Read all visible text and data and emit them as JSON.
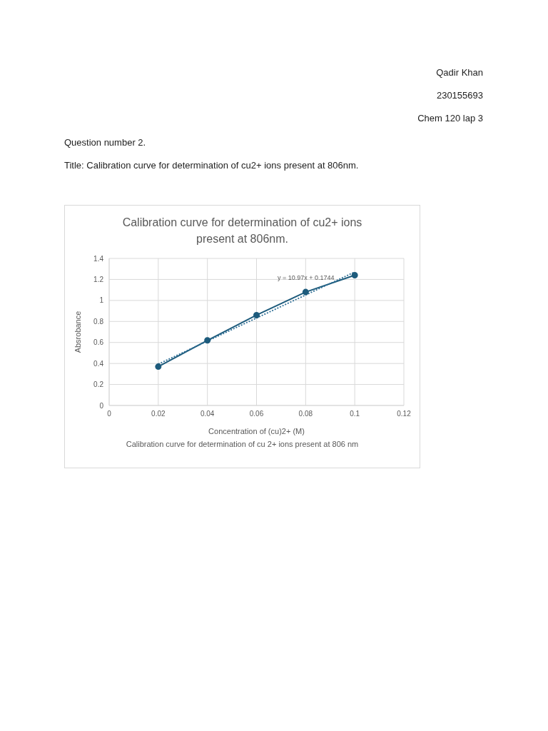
{
  "chart_data": {
    "type": "line",
    "title": "Calibration curve for determination of cu2+ ions present at 806nm.",
    "xlabel": "Concentration of (cu)2+ (M)",
    "ylabel": "Absrobance",
    "annotations": [
      "Qadir Khan",
      "230155693",
      "Chem 120 lap 3",
      "Question number 2.",
      "Title: Calibration curve for determination of cu2+ ions present at 806nm.",
      "y = 10.97x + 0.1744",
      "Calibration curve for determination of cu 2+ ions present at 806 nm"
    ],
    "series": [
      {
        "color": "#1d5b7c",
        "x": [
          0.02,
          0.04,
          0.06,
          0.08,
          0.1
        ],
        "values": [
          0.37,
          0.62,
          0.86,
          1.08,
          1.24
        ]
      },
      {
        "type": "line",
        "color": "#2f6f96",
        "x": [
          0.02,
          0.1
        ],
        "values": [
          0.394,
          1.271
        ],
        "marker": "none",
        "line_style": "dotted"
      }
    ],
    "xlim": [
      0,
      0.12
    ],
    "xticks": [
      0,
      0.02,
      0.04,
      0.06,
      0.08,
      0.1,
      0.12
    ],
    "ylim": [
      0,
      1.4
    ],
    "yticks": [
      0,
      0.2,
      0.4,
      0.6,
      0.8,
      1,
      1.2,
      1.4
    ],
    "grid": true,
    "marker": "circle",
    "line_style": "solid"
  }
}
